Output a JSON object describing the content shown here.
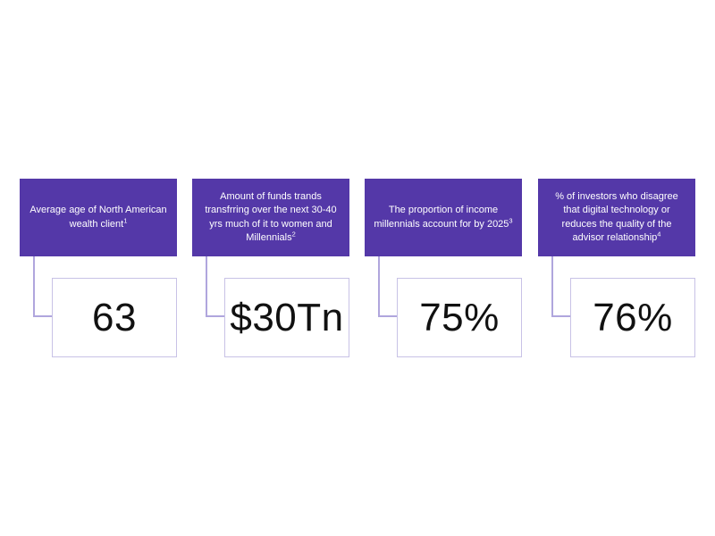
{
  "colors": {
    "box_purple": "#5438a8",
    "connector": "#b0a6dd",
    "value_border": "#c8c2e6",
    "value_text": "#111111",
    "desc_text": "#ffffff"
  },
  "stats": [
    {
      "description": "Average age of North American wealth client",
      "footnote": "1",
      "value": "63"
    },
    {
      "description": "Amount of funds trands transfrring over the next 30-40 yrs much of it to women and Millennials",
      "footnote": "2",
      "value": "$30Tn"
    },
    {
      "description": "The proportion of income millennials account for by 2025",
      "footnote": "3",
      "value": "75%"
    },
    {
      "description": "% of investors who disagree that digital technology or reduces the quality of the advisor relationship",
      "footnote": "4",
      "value": "76%"
    }
  ]
}
